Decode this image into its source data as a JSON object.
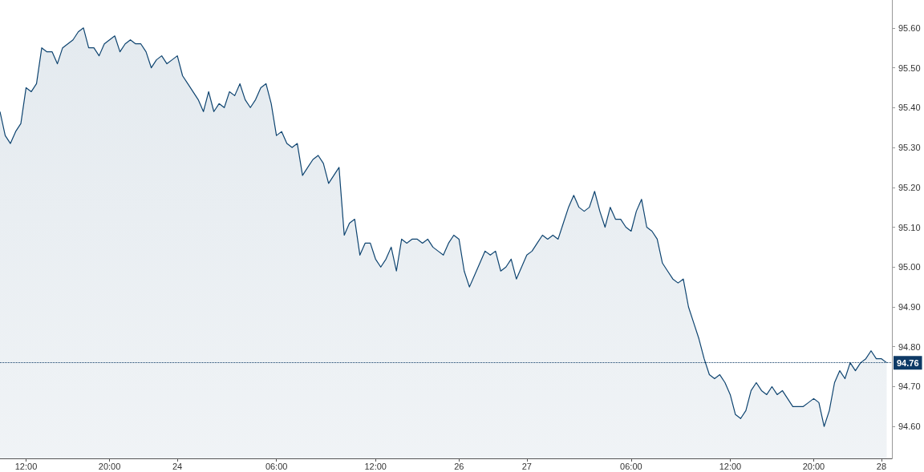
{
  "chart_data": {
    "type": "area",
    "categories": [
      null,
      null,
      null,
      null,
      null,
      "12:00",
      null,
      null,
      null,
      null,
      null,
      null,
      null,
      null,
      null,
      null,
      null,
      null,
      null,
      null,
      null,
      "20:00",
      null,
      null,
      null,
      null,
      null,
      null,
      null,
      null,
      null,
      null,
      null,
      null,
      "24",
      null,
      null,
      null,
      null,
      null,
      null,
      null,
      null,
      null,
      null,
      null,
      null,
      null,
      null,
      null,
      null,
      null,
      null,
      "06:00",
      null,
      null,
      null,
      null,
      null,
      null,
      null,
      null,
      null,
      null,
      null,
      null,
      null,
      null,
      null,
      null,
      null,
      null,
      "12:00",
      null,
      null,
      null,
      null,
      null,
      null,
      null,
      null,
      null,
      null,
      null,
      null,
      null,
      null,
      null,
      "26",
      null,
      null,
      null,
      null,
      null,
      null,
      null,
      null,
      null,
      null,
      null,
      null,
      "27",
      null,
      null,
      null,
      null,
      null,
      null,
      null,
      null,
      null,
      null,
      null,
      null,
      null,
      null,
      null,
      null,
      null,
      null,
      null,
      "06:00",
      null,
      null,
      null,
      null,
      null,
      null,
      null,
      null,
      null,
      null,
      null,
      null,
      null,
      null,
      null,
      null,
      null,
      null,
      "12:00",
      null,
      null,
      null,
      null,
      null,
      null,
      null,
      null,
      null,
      null,
      null,
      null,
      null,
      null,
      null,
      "20:00",
      null,
      null,
      null,
      null,
      null,
      null,
      null,
      null,
      null,
      null,
      null,
      null,
      "28",
      null,
      null
    ],
    "series": [
      {
        "color": "#0e4470",
        "values": [
          95.39,
          95.33,
          95.31,
          95.34,
          95.36,
          95.45,
          95.44,
          95.46,
          95.55,
          95.54,
          95.54,
          95.51,
          95.55,
          95.56,
          95.57,
          95.59,
          95.6,
          95.55,
          95.55,
          95.53,
          95.56,
          95.57,
          95.58,
          95.54,
          95.56,
          95.57,
          95.56,
          95.56,
          95.54,
          95.5,
          95.52,
          95.53,
          95.51,
          95.52,
          95.53,
          95.48,
          95.46,
          95.44,
          95.42,
          95.39,
          95.44,
          95.39,
          95.41,
          95.4,
          95.44,
          95.43,
          95.46,
          95.42,
          95.4,
          95.42,
          95.45,
          95.46,
          95.41,
          95.33,
          95.34,
          95.31,
          95.3,
          95.31,
          95.23,
          95.25,
          95.27,
          95.28,
          95.26,
          95.21,
          95.23,
          95.25,
          95.08,
          95.11,
          95.12,
          95.03,
          95.06,
          95.06,
          95.02,
          95.0,
          95.02,
          95.05,
          94.99,
          95.07,
          95.06,
          95.07,
          95.07,
          95.06,
          95.07,
          95.05,
          95.04,
          95.03,
          95.06,
          95.08,
          95.07,
          94.99,
          94.95,
          94.98,
          95.01,
          95.04,
          95.03,
          95.04,
          94.99,
          95.0,
          95.02,
          94.97,
          95.0,
          95.03,
          95.04,
          95.06,
          95.08,
          95.07,
          95.08,
          95.07,
          95.11,
          95.15,
          95.18,
          95.15,
          95.14,
          95.15,
          95.19,
          95.14,
          95.1,
          95.15,
          95.12,
          95.12,
          95.1,
          95.09,
          95.14,
          95.17,
          95.1,
          95.09,
          95.07,
          95.01,
          94.99,
          94.97,
          94.96,
          94.97,
          94.9,
          94.86,
          94.82,
          94.77,
          94.73,
          94.72,
          94.73,
          94.71,
          94.68,
          94.63,
          94.62,
          94.64,
          94.69,
          94.71,
          94.69,
          94.68,
          94.7,
          94.68,
          94.69,
          94.67,
          94.65,
          94.65,
          94.65,
          94.66,
          94.67,
          94.66,
          94.6,
          94.64,
          94.71,
          94.74,
          94.72,
          94.76,
          94.74,
          94.76,
          94.77,
          94.79,
          94.77,
          94.77,
          94.76,
          null
        ]
      }
    ],
    "ylim": [
      94.52,
      95.67
    ],
    "yticks": [
      {
        "value": 94.6,
        "label": "94.60"
      },
      {
        "value": 94.7,
        "label": "94.70"
      },
      {
        "value": 94.8,
        "label": "94.80"
      },
      {
        "value": 94.9,
        "label": "94.90"
      },
      {
        "value": 95.0,
        "label": "95.00"
      },
      {
        "value": 95.1,
        "label": "95.10"
      },
      {
        "value": 95.2,
        "label": "95.20"
      },
      {
        "value": 95.3,
        "label": "95.30"
      },
      {
        "value": 95.4,
        "label": "95.40"
      },
      {
        "value": 95.5,
        "label": "95.50"
      },
      {
        "value": 95.6,
        "label": "95.60"
      }
    ],
    "ref_lines": [
      {
        "axis": "y",
        "value": 94.76,
        "label": "94.76",
        "color": "#0e3a66",
        "line_style": "dotted"
      }
    ],
    "grid": false,
    "marker": "none",
    "line_style": "solid"
  }
}
